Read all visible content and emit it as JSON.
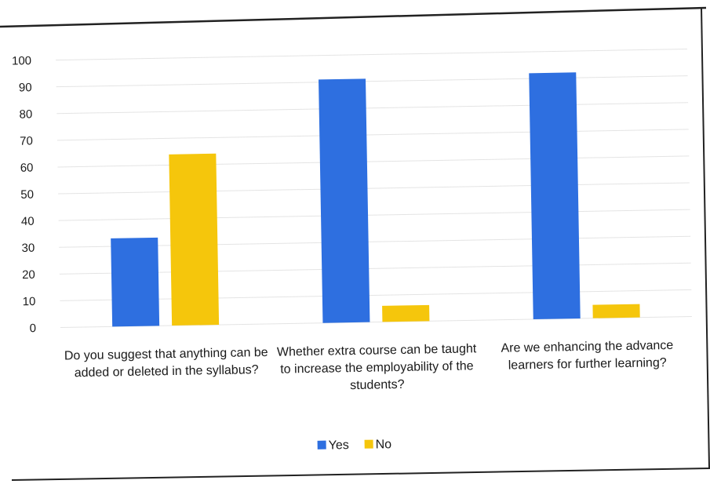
{
  "chart_data": {
    "type": "bar",
    "categories": [
      [
        "Do you suggest that anything can be",
        "added or deleted in the syllabus?"
      ],
      [
        "Whether extra course can be taught",
        "to increase the employability of the",
        "students?"
      ],
      [
        "Are we enhancing the advance",
        "learners for further learning?"
      ]
    ],
    "series": [
      {
        "name": "Yes",
        "color": "#2e6fe0",
        "values": [
          33,
          91,
          92
        ]
      },
      {
        "name": "No",
        "color": "#f5c60c",
        "values": [
          64,
          6,
          5
        ]
      }
    ],
    "ylim": [
      0,
      100
    ],
    "yticks": [
      "0",
      "10",
      "20",
      "30",
      "40",
      "50",
      "60",
      "70",
      "80",
      "90",
      "100"
    ],
    "grid": true,
    "legend": "bottom-center",
    "title": "",
    "xlabel": "",
    "ylabel": ""
  }
}
